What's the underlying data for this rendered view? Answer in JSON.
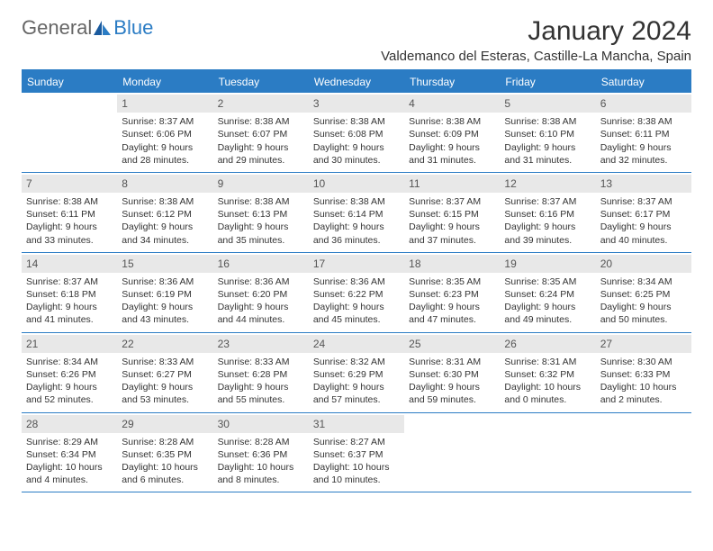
{
  "logo": {
    "text1": "General",
    "text2": "Blue"
  },
  "title": "January 2024",
  "location": "Valdemanco del Esteras, Castille-La Mancha, Spain",
  "colors": {
    "brand": "#2b7cc4",
    "daynum_bg": "#e8e8e8",
    "text": "#333333"
  },
  "dow": [
    "Sunday",
    "Monday",
    "Tuesday",
    "Wednesday",
    "Thursday",
    "Friday",
    "Saturday"
  ],
  "days": [
    {
      "n": "",
      "sr": "",
      "ss": "",
      "dl": ""
    },
    {
      "n": "1",
      "sr": "Sunrise: 8:37 AM",
      "ss": "Sunset: 6:06 PM",
      "dl": "Daylight: 9 hours and 28 minutes."
    },
    {
      "n": "2",
      "sr": "Sunrise: 8:38 AM",
      "ss": "Sunset: 6:07 PM",
      "dl": "Daylight: 9 hours and 29 minutes."
    },
    {
      "n": "3",
      "sr": "Sunrise: 8:38 AM",
      "ss": "Sunset: 6:08 PM",
      "dl": "Daylight: 9 hours and 30 minutes."
    },
    {
      "n": "4",
      "sr": "Sunrise: 8:38 AM",
      "ss": "Sunset: 6:09 PM",
      "dl": "Daylight: 9 hours and 31 minutes."
    },
    {
      "n": "5",
      "sr": "Sunrise: 8:38 AM",
      "ss": "Sunset: 6:10 PM",
      "dl": "Daylight: 9 hours and 31 minutes."
    },
    {
      "n": "6",
      "sr": "Sunrise: 8:38 AM",
      "ss": "Sunset: 6:11 PM",
      "dl": "Daylight: 9 hours and 32 minutes."
    },
    {
      "n": "7",
      "sr": "Sunrise: 8:38 AM",
      "ss": "Sunset: 6:11 PM",
      "dl": "Daylight: 9 hours and 33 minutes."
    },
    {
      "n": "8",
      "sr": "Sunrise: 8:38 AM",
      "ss": "Sunset: 6:12 PM",
      "dl": "Daylight: 9 hours and 34 minutes."
    },
    {
      "n": "9",
      "sr": "Sunrise: 8:38 AM",
      "ss": "Sunset: 6:13 PM",
      "dl": "Daylight: 9 hours and 35 minutes."
    },
    {
      "n": "10",
      "sr": "Sunrise: 8:38 AM",
      "ss": "Sunset: 6:14 PM",
      "dl": "Daylight: 9 hours and 36 minutes."
    },
    {
      "n": "11",
      "sr": "Sunrise: 8:37 AM",
      "ss": "Sunset: 6:15 PM",
      "dl": "Daylight: 9 hours and 37 minutes."
    },
    {
      "n": "12",
      "sr": "Sunrise: 8:37 AM",
      "ss": "Sunset: 6:16 PM",
      "dl": "Daylight: 9 hours and 39 minutes."
    },
    {
      "n": "13",
      "sr": "Sunrise: 8:37 AM",
      "ss": "Sunset: 6:17 PM",
      "dl": "Daylight: 9 hours and 40 minutes."
    },
    {
      "n": "14",
      "sr": "Sunrise: 8:37 AM",
      "ss": "Sunset: 6:18 PM",
      "dl": "Daylight: 9 hours and 41 minutes."
    },
    {
      "n": "15",
      "sr": "Sunrise: 8:36 AM",
      "ss": "Sunset: 6:19 PM",
      "dl": "Daylight: 9 hours and 43 minutes."
    },
    {
      "n": "16",
      "sr": "Sunrise: 8:36 AM",
      "ss": "Sunset: 6:20 PM",
      "dl": "Daylight: 9 hours and 44 minutes."
    },
    {
      "n": "17",
      "sr": "Sunrise: 8:36 AM",
      "ss": "Sunset: 6:22 PM",
      "dl": "Daylight: 9 hours and 45 minutes."
    },
    {
      "n": "18",
      "sr": "Sunrise: 8:35 AM",
      "ss": "Sunset: 6:23 PM",
      "dl": "Daylight: 9 hours and 47 minutes."
    },
    {
      "n": "19",
      "sr": "Sunrise: 8:35 AM",
      "ss": "Sunset: 6:24 PM",
      "dl": "Daylight: 9 hours and 49 minutes."
    },
    {
      "n": "20",
      "sr": "Sunrise: 8:34 AM",
      "ss": "Sunset: 6:25 PM",
      "dl": "Daylight: 9 hours and 50 minutes."
    },
    {
      "n": "21",
      "sr": "Sunrise: 8:34 AM",
      "ss": "Sunset: 6:26 PM",
      "dl": "Daylight: 9 hours and 52 minutes."
    },
    {
      "n": "22",
      "sr": "Sunrise: 8:33 AM",
      "ss": "Sunset: 6:27 PM",
      "dl": "Daylight: 9 hours and 53 minutes."
    },
    {
      "n": "23",
      "sr": "Sunrise: 8:33 AM",
      "ss": "Sunset: 6:28 PM",
      "dl": "Daylight: 9 hours and 55 minutes."
    },
    {
      "n": "24",
      "sr": "Sunrise: 8:32 AM",
      "ss": "Sunset: 6:29 PM",
      "dl": "Daylight: 9 hours and 57 minutes."
    },
    {
      "n": "25",
      "sr": "Sunrise: 8:31 AM",
      "ss": "Sunset: 6:30 PM",
      "dl": "Daylight: 9 hours and 59 minutes."
    },
    {
      "n": "26",
      "sr": "Sunrise: 8:31 AM",
      "ss": "Sunset: 6:32 PM",
      "dl": "Daylight: 10 hours and 0 minutes."
    },
    {
      "n": "27",
      "sr": "Sunrise: 8:30 AM",
      "ss": "Sunset: 6:33 PM",
      "dl": "Daylight: 10 hours and 2 minutes."
    },
    {
      "n": "28",
      "sr": "Sunrise: 8:29 AM",
      "ss": "Sunset: 6:34 PM",
      "dl": "Daylight: 10 hours and 4 minutes."
    },
    {
      "n": "29",
      "sr": "Sunrise: 8:28 AM",
      "ss": "Sunset: 6:35 PM",
      "dl": "Daylight: 10 hours and 6 minutes."
    },
    {
      "n": "30",
      "sr": "Sunrise: 8:28 AM",
      "ss": "Sunset: 6:36 PM",
      "dl": "Daylight: 10 hours and 8 minutes."
    },
    {
      "n": "31",
      "sr": "Sunrise: 8:27 AM",
      "ss": "Sunset: 6:37 PM",
      "dl": "Daylight: 10 hours and 10 minutes."
    },
    {
      "n": "",
      "sr": "",
      "ss": "",
      "dl": ""
    },
    {
      "n": "",
      "sr": "",
      "ss": "",
      "dl": ""
    },
    {
      "n": "",
      "sr": "",
      "ss": "",
      "dl": ""
    }
  ]
}
